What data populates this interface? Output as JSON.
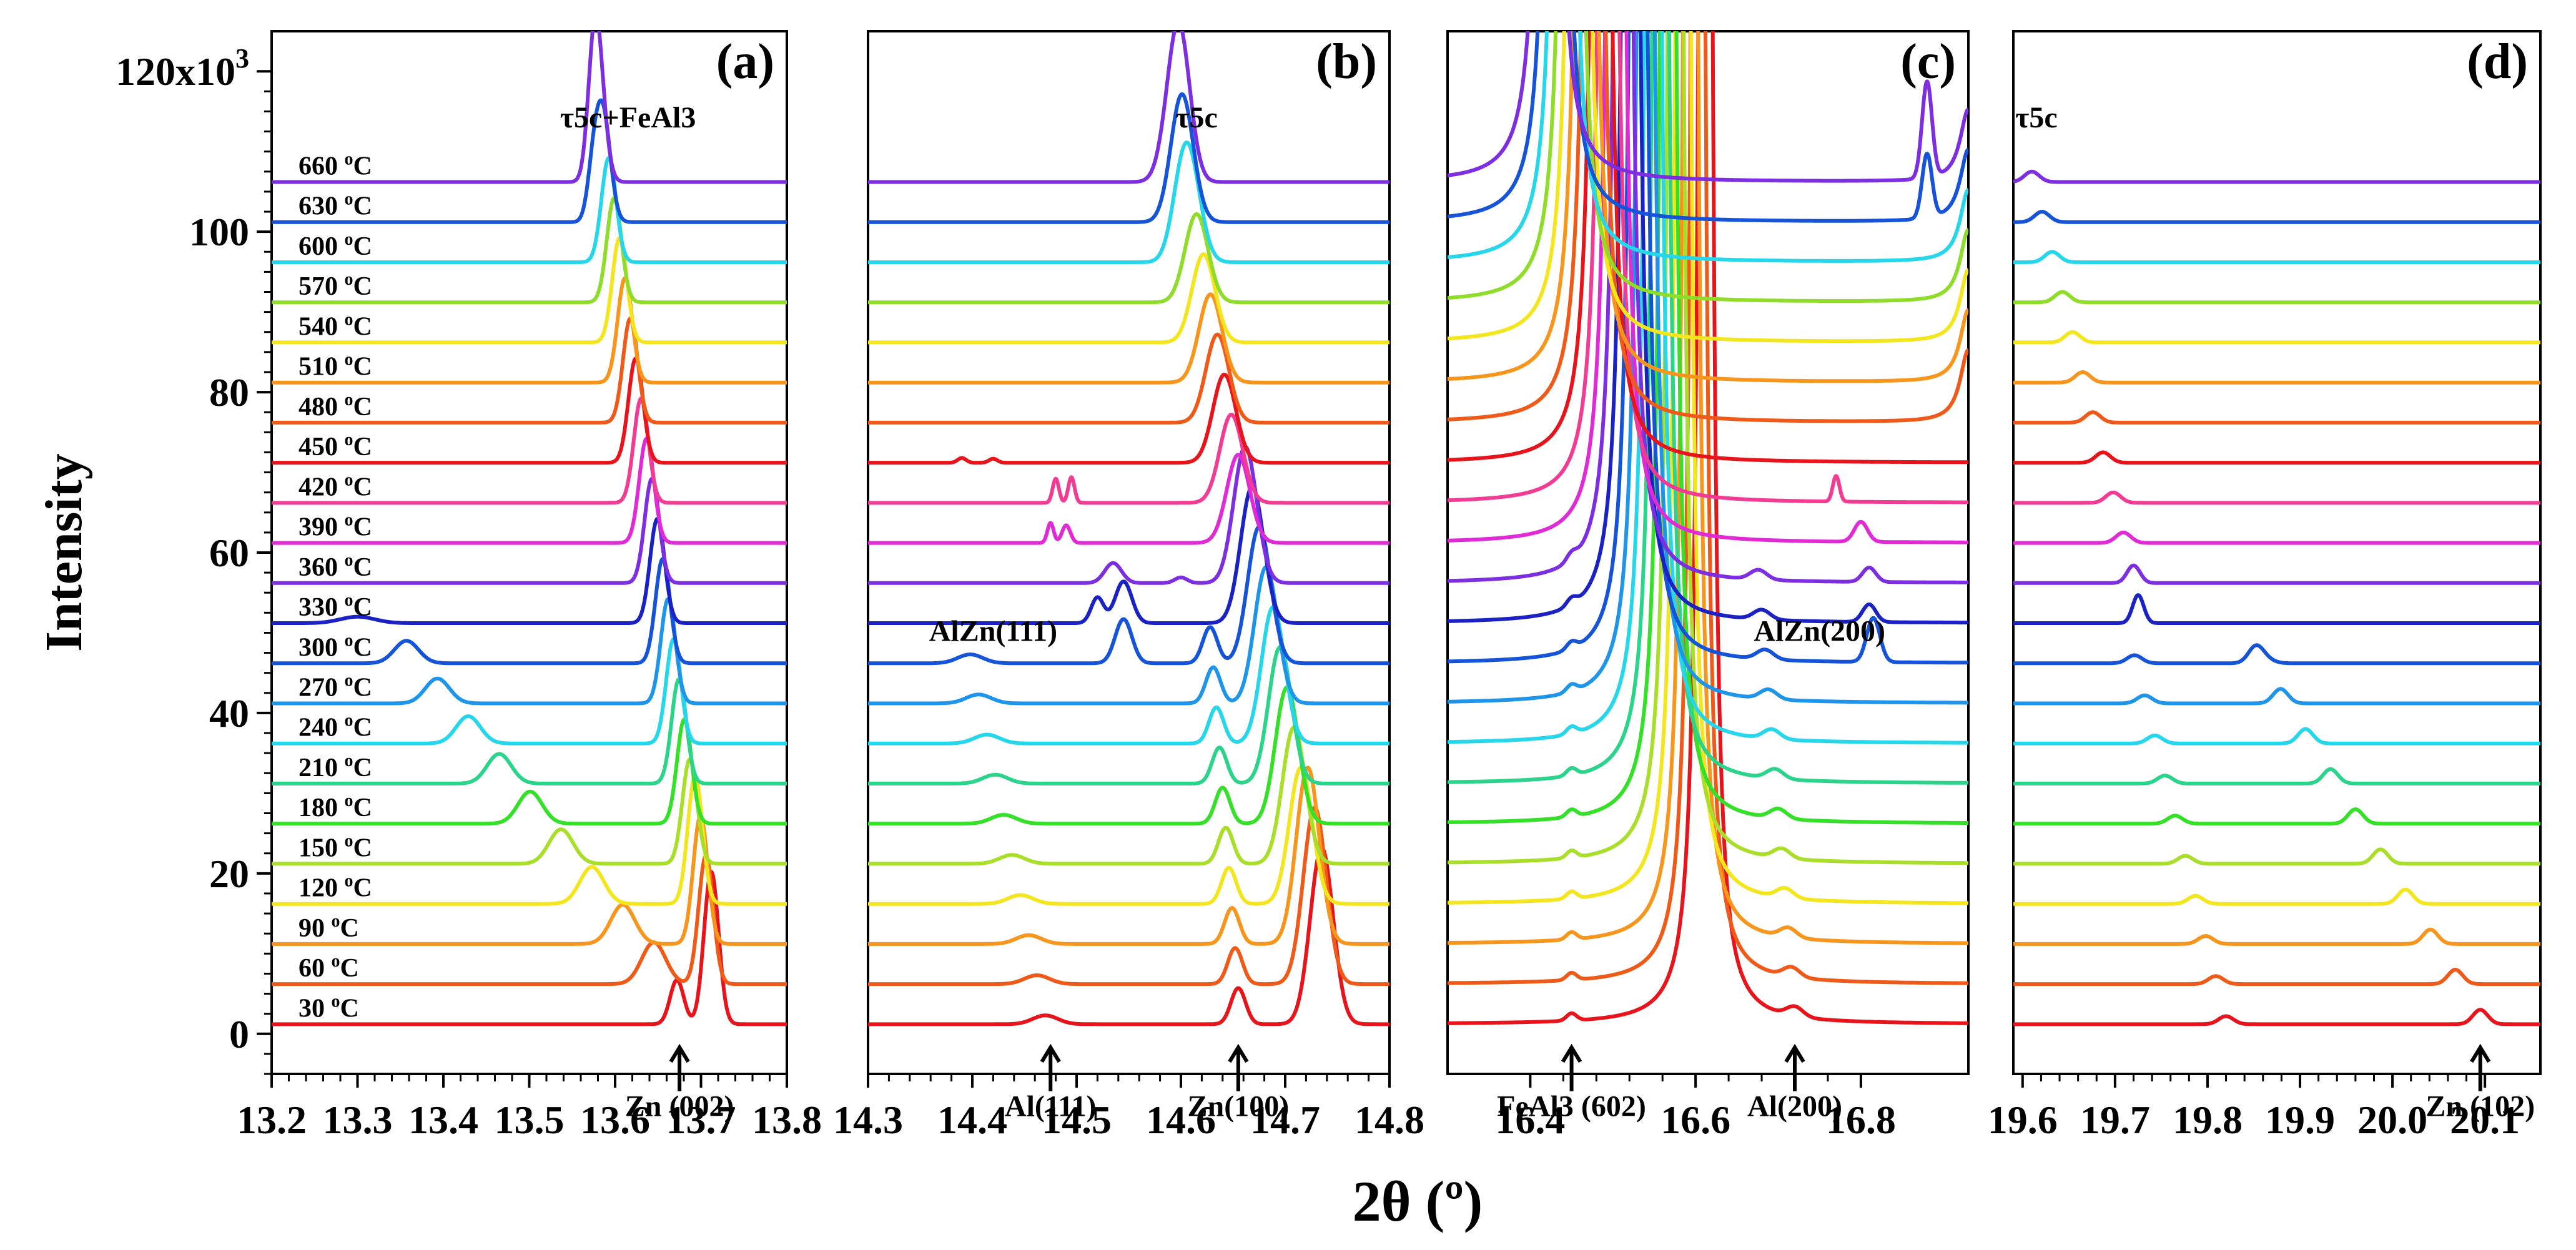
{
  "chart_data": {
    "type": "line",
    "title": "",
    "xlabel": "2θ (º)",
    "ylabel": "Intensity",
    "ylim": [
      -5000,
      125000
    ],
    "yticks": [
      0,
      20,
      40,
      60,
      80,
      100
    ],
    "ytick_labels": [
      "0",
      "20",
      "40",
      "60",
      "80",
      "100"
    ],
    "ytop_label_base": "120x10",
    "ytop_label_exp": "3",
    "series": [
      {
        "name": "30 ºC",
        "label": "30 ",
        "unit_sup": "o",
        "unit": "C",
        "color": "#e8141b",
        "offset": 0
      },
      {
        "name": "60 ºC",
        "label": "60 ",
        "unit_sup": "o",
        "unit": "C",
        "color": "#f05a18",
        "offset": 5000
      },
      {
        "name": "90 ºC",
        "label": "90 ",
        "unit_sup": "o",
        "unit": "C",
        "color": "#f7951c",
        "offset": 10000
      },
      {
        "name": "120 ºC",
        "label": "120 ",
        "unit_sup": "o",
        "unit": "C",
        "color": "#f4e61e",
        "offset": 15000
      },
      {
        "name": "150 ºC",
        "label": "150 ",
        "unit_sup": "o",
        "unit": "C",
        "color": "#a9de2a",
        "offset": 20000
      },
      {
        "name": "180 ºC",
        "label": "180 ",
        "unit_sup": "o",
        "unit": "C",
        "color": "#35e028",
        "offset": 25000
      },
      {
        "name": "210 ºC",
        "label": "210 ",
        "unit_sup": "o",
        "unit": "C",
        "color": "#2bd48a",
        "offset": 30000
      },
      {
        "name": "240 ºC",
        "label": "240 ",
        "unit_sup": "o",
        "unit": "C",
        "color": "#26d6ea",
        "offset": 35000
      },
      {
        "name": "270 ºC",
        "label": "270 ",
        "unit_sup": "o",
        "unit": "C",
        "color": "#1f95ea",
        "offset": 40000
      },
      {
        "name": "300 ºC",
        "label": "300 ",
        "unit_sup": "o",
        "unit": "C",
        "color": "#1553d8",
        "offset": 45000
      },
      {
        "name": "330 ºC",
        "label": "330 ",
        "unit_sup": "o",
        "unit": "C",
        "color": "#1b22c4",
        "offset": 50000
      },
      {
        "name": "360 ºC",
        "label": "360 ",
        "unit_sup": "o",
        "unit": "C",
        "color": "#7d2ee0",
        "offset": 55000
      },
      {
        "name": "390 ºC",
        "label": "390 ",
        "unit_sup": "o",
        "unit": "C",
        "color": "#e02ad6",
        "offset": 60000
      },
      {
        "name": "420 ºC",
        "label": "420 ",
        "unit_sup": "o",
        "unit": "C",
        "color": "#f23b93",
        "offset": 65000
      },
      {
        "name": "450 ºC",
        "label": "450 ",
        "unit_sup": "o",
        "unit": "C",
        "color": "#e8141b",
        "offset": 70000
      },
      {
        "name": "480 ºC",
        "label": "480 ",
        "unit_sup": "o",
        "unit": "C",
        "color": "#f05a18",
        "offset": 75000
      },
      {
        "name": "510 ºC",
        "label": "510 ",
        "unit_sup": "o",
        "unit": "C",
        "color": "#f7951c",
        "offset": 80000
      },
      {
        "name": "540 ºC",
        "label": "540 ",
        "unit_sup": "o",
        "unit": "C",
        "color": "#f4e61e",
        "offset": 85000
      },
      {
        "name": "570 ºC",
        "label": "570 ",
        "unit_sup": "o",
        "unit": "C",
        "color": "#8fdc2a",
        "offset": 90000
      },
      {
        "name": "600 ºC",
        "label": "600 ",
        "unit_sup": "o",
        "unit": "C",
        "color": "#26d6ea",
        "offset": 95000
      },
      {
        "name": "630 ºC",
        "label": "630 ",
        "unit_sup": "o",
        "unit": "C",
        "color": "#1553d8",
        "offset": 100000
      },
      {
        "name": "660 ºC",
        "label": "660 ",
        "unit_sup": "o",
        "unit": "C",
        "color": "#7d2ee0",
        "offset": 105000
      }
    ],
    "panels": [
      {
        "id": "a",
        "label": "(a)",
        "xlim": [
          13.2,
          13.8
        ],
        "xticks": [
          13.2,
          13.3,
          13.4,
          13.5,
          13.6,
          13.7,
          13.8
        ],
        "xtick_labels": [
          "13.2",
          "13.3",
          "13.4",
          "13.5",
          "13.6",
          "13.7",
          "13.8"
        ],
        "annotations": [
          {
            "text": "τ5c+FeAl3",
            "x": 13.615,
            "y": 113000
          },
          {
            "text": "Zn (002)",
            "x": 13.675,
            "y": -5200,
            "arrow": true
          }
        ]
      },
      {
        "id": "b",
        "label": "(b)",
        "xlim": [
          14.3,
          14.8
        ],
        "xticks": [
          14.3,
          14.4,
          14.5,
          14.6,
          14.7,
          14.8
        ],
        "xtick_labels": [
          "14.3",
          "14.4",
          "14.5",
          "14.6",
          "14.7",
          "14.8"
        ],
        "annotations": [
          {
            "text": "τ5c",
            "x": 14.615,
            "y": 113000
          },
          {
            "text": "AlZn(111)",
            "x": 14.42,
            "y": 49000
          },
          {
            "text": "Al(111)",
            "x": 14.475,
            "y": -5200,
            "arrow": true
          },
          {
            "text": "Zn(100)",
            "x": 14.655,
            "y": -5200,
            "arrow": true
          }
        ]
      },
      {
        "id": "c",
        "label": "(c)",
        "xlim": [
          16.3,
          16.93
        ],
        "xticks": [
          16.4,
          16.6,
          16.8
        ],
        "xtick_labels": [
          "16.4",
          "16.6",
          "16.8"
        ],
        "annotations": [
          {
            "text": "AlZn(200)",
            "x": 16.75,
            "y": 49000
          },
          {
            "text": "FeAl3 (602)",
            "x": 16.45,
            "y": -5200,
            "arrow": true
          },
          {
            "text": "Al(200)",
            "x": 16.72,
            "y": -5200,
            "arrow": true
          }
        ]
      },
      {
        "id": "d",
        "label": "(d)",
        "xlim": [
          19.59,
          20.16
        ],
        "xticks": [
          19.6,
          19.7,
          19.8,
          19.9,
          20.0,
          20.1
        ],
        "xtick_labels": [
          "19.6",
          "19.7",
          "19.8",
          "19.9",
          "20.0",
          "20.1"
        ],
        "annotations": [
          {
            "text": "τ5c",
            "x": 19.615,
            "y": 113000
          },
          {
            "text": "Zn (102)",
            "x": 20.095,
            "y": -5200,
            "arrow": true
          }
        ]
      }
    ]
  }
}
